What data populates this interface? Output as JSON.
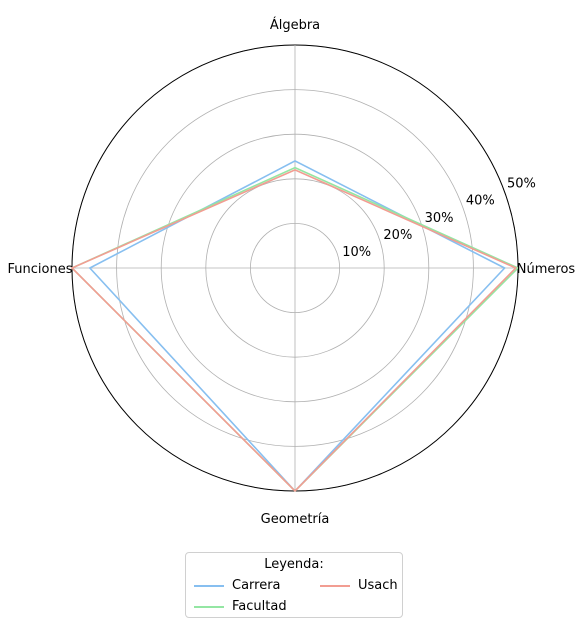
{
  "chart_data": {
    "type": "radar",
    "categories": [
      "Números",
      "Álgebra",
      "Funciones",
      "Geometría"
    ],
    "radial_ticks": [
      10,
      20,
      30,
      40,
      50
    ],
    "radial_tick_labels": [
      "10%",
      "20%",
      "30%",
      "40%",
      "50%"
    ],
    "rlim": [
      0,
      50
    ],
    "grid": true,
    "series": [
      {
        "name": "Carrera",
        "color": "#87bff0",
        "values": [
          47,
          24,
          46,
          50
        ]
      },
      {
        "name": "Facultad",
        "color": "#94e6a3",
        "values": [
          50,
          22.5,
          50,
          50
        ]
      },
      {
        "name": "Usach",
        "color": "#f29d92",
        "values": [
          49.5,
          22,
          50,
          50
        ]
      }
    ],
    "legend": {
      "title": "Leyenda:",
      "placement": "bottom-center"
    }
  }
}
